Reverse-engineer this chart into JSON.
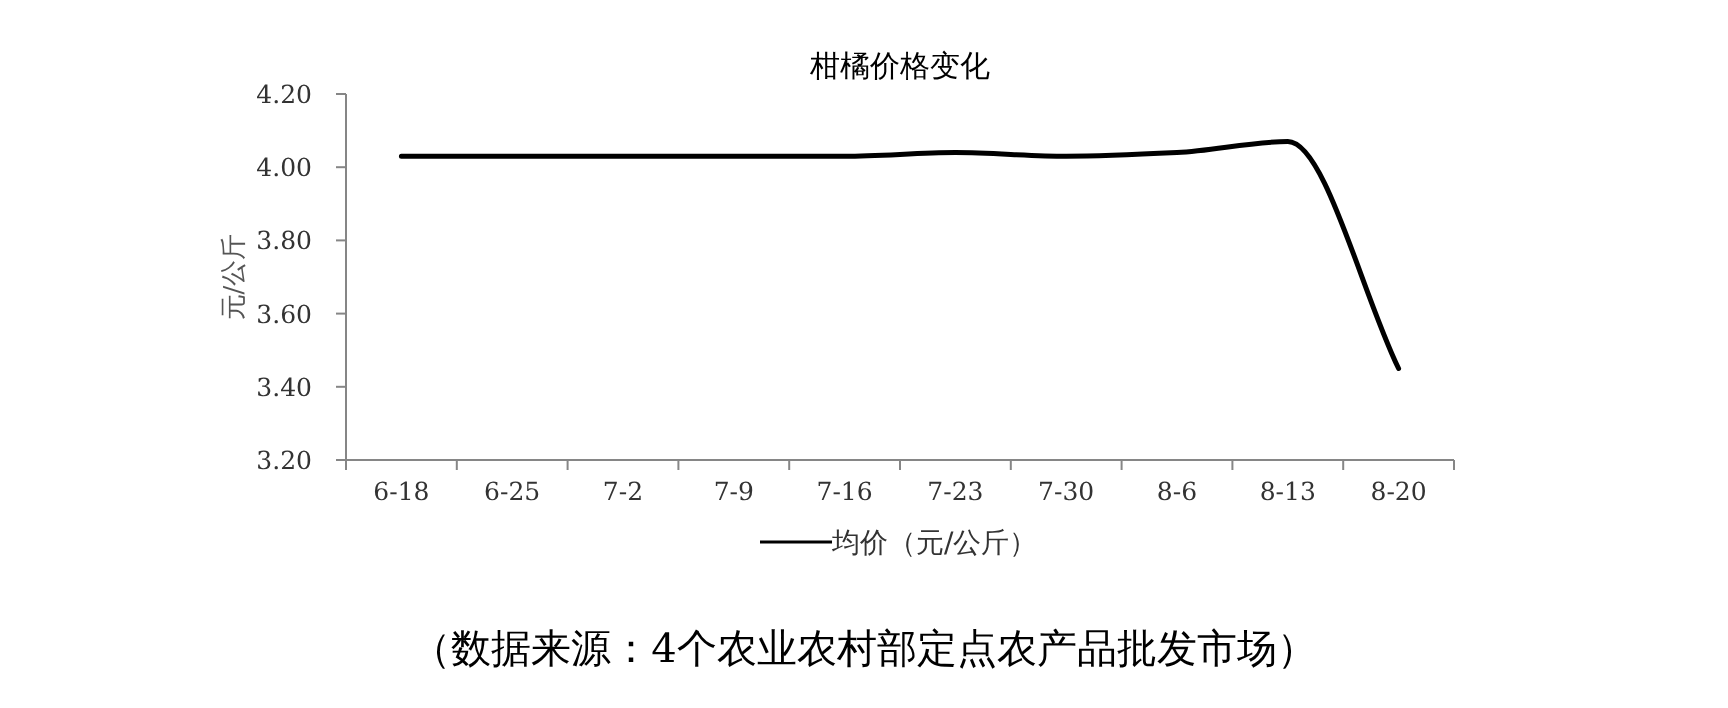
{
  "chart_data": {
    "type": "line",
    "title": "柑橘价格变化",
    "ylabel": "元/公斤",
    "categories": [
      "6-18",
      "6-25",
      "7-2",
      "7-9",
      "7-16",
      "7-23",
      "7-30",
      "8-6",
      "8-13",
      "8-20"
    ],
    "series": [
      {
        "name": "均价（元/公斤）",
        "color": "#000000",
        "values": [
          4.03,
          4.03,
          4.03,
          4.03,
          4.03,
          4.04,
          4.03,
          4.04,
          4.07,
          3.45
        ]
      }
    ],
    "ylim": [
      3.2,
      4.2
    ],
    "yticks": [
      {
        "value": 3.2,
        "label": "3.20"
      },
      {
        "value": 3.4,
        "label": "3.40"
      },
      {
        "value": 3.6,
        "label": "3.60"
      },
      {
        "value": 3.8,
        "label": "3.80"
      },
      {
        "value": 4.0,
        "label": "4.00"
      },
      {
        "value": 4.2,
        "label": "4.20"
      }
    ],
    "legend": "bottom",
    "annotations": [
      "（数据来源：4个农业农村部定点农产品批发市场）"
    ]
  }
}
